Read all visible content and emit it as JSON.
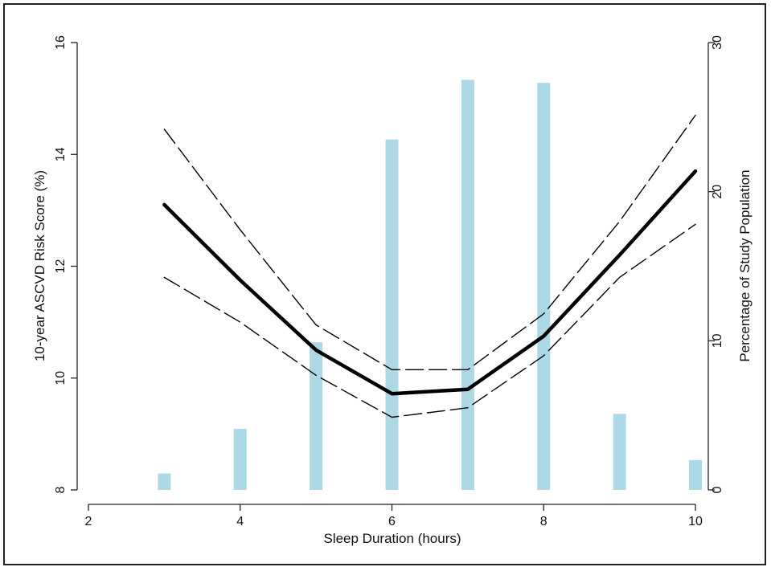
{
  "chart_data": {
    "type": "bar+line",
    "title": "",
    "xlabel": "Sleep Duration (hours)",
    "ylabel_left": "10-year ASCVD Risk Score (%)",
    "ylabel_right": "Percentage of Study Population",
    "xlim": [
      2,
      10
    ],
    "ylim_left": [
      8,
      16
    ],
    "ylim_right": [
      0,
      30
    ],
    "x_ticks": [
      "2",
      "4",
      "6",
      "8",
      "10"
    ],
    "y_left_ticks": [
      "8",
      "10",
      "12",
      "14",
      "16"
    ],
    "y_right_ticks": [
      "0",
      "10",
      "20",
      "30"
    ],
    "grid": false,
    "bars": {
      "axis": "right",
      "color": "#add8e6",
      "x": [
        3,
        4,
        5,
        6,
        7,
        8,
        9,
        10
      ],
      "values": [
        1.1,
        4.1,
        9.9,
        23.5,
        27.5,
        27.3,
        5.1,
        2.0
      ]
    },
    "series": [
      {
        "style": "solid",
        "axis": "left",
        "color": "#000000",
        "x": [
          3,
          4,
          5,
          6,
          7,
          8,
          9,
          10
        ],
        "values": [
          13.1,
          11.75,
          10.5,
          9.72,
          9.8,
          10.75,
          12.2,
          13.7
        ]
      },
      {
        "style": "dashed",
        "axis": "left",
        "color": "#000000",
        "x": [
          3,
          4,
          5,
          6,
          7,
          8,
          9,
          10
        ],
        "values": [
          14.45,
          12.65,
          10.95,
          10.15,
          10.15,
          11.15,
          12.8,
          14.7
        ]
      },
      {
        "style": "dashed",
        "axis": "left",
        "color": "#000000",
        "x": [
          3,
          4,
          5,
          6,
          7,
          8,
          9,
          10
        ],
        "values": [
          11.8,
          11.0,
          10.05,
          9.3,
          9.47,
          10.4,
          11.8,
          12.75
        ]
      }
    ]
  }
}
